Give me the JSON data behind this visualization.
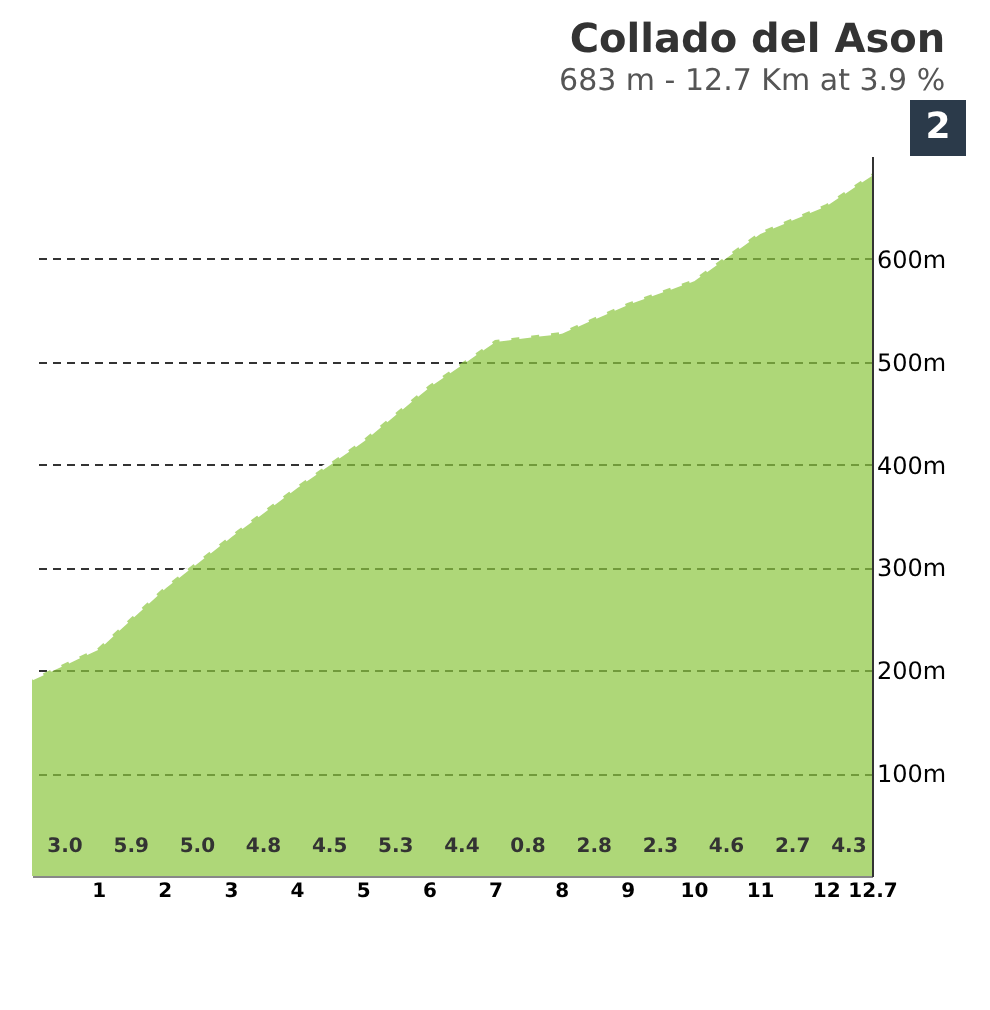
{
  "chart_data": {
    "type": "area",
    "title": "Collado del Ason",
    "subtitle": "683 m - 12.7 Km at 3.9 %",
    "x": [
      0,
      1,
      2,
      3,
      4,
      5,
      6,
      7,
      8,
      9,
      10,
      11,
      12,
      12.7
    ],
    "series": [
      {
        "color": "#8cc63f",
        "values": [
          192,
          222,
          281,
          331,
          379,
          424,
          477,
          521,
          529,
          557,
          580,
          626,
          653,
          683
        ]
      }
    ],
    "xlim": [
      0,
      12.7
    ],
    "xticks": [
      1,
      2,
      3,
      4,
      5,
      6,
      7,
      8,
      9,
      10,
      11,
      12,
      {
        "value": 12.7,
        "label": "12.7"
      }
    ],
    "ylim": [
      0,
      700
    ],
    "yticks": [
      {
        "value": 100,
        "label": "100m"
      },
      {
        "value": 200,
        "label": "200m"
      },
      {
        "value": 300,
        "label": "300m"
      },
      {
        "value": 400,
        "label": "400m"
      },
      {
        "value": 500,
        "label": "500m"
      },
      {
        "value": 600,
        "label": "600m"
      }
    ],
    "grid": true,
    "annotations": [
      "2",
      "3.0",
      "5.9",
      "5.0",
      "4.8",
      "4.5",
      "5.3",
      "4.4",
      "0.8",
      "2.8",
      "2.3",
      "4.6",
      "2.7",
      "4.3"
    ]
  }
}
